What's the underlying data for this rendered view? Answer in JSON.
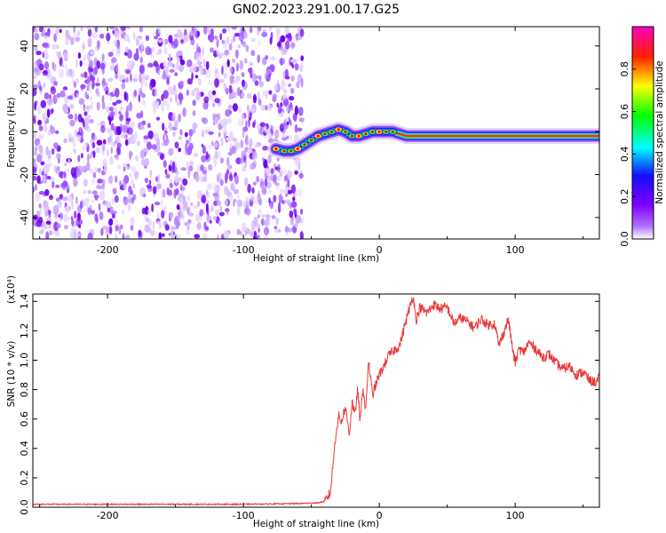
{
  "chart_data": [
    {
      "type": "heatmap",
      "title": "GN02.2023.291.00.17.G25",
      "xlabel": "Height of straight line (km)",
      "ylabel": "Frequency (Hz)",
      "xlim": [
        -255,
        162
      ],
      "ylim": [
        -50,
        49
      ],
      "xticks": [
        -200,
        -100,
        0,
        100
      ],
      "yticks": [
        -40,
        -20,
        0,
        20,
        40
      ],
      "colorbar": {
        "label": "Normalized spectral amplitude",
        "range": [
          0,
          1
        ],
        "ticks": [
          "0.0",
          "0.2",
          "0.4",
          "0.6",
          "0.8"
        ],
        "colormap": [
          "#ffffff",
          "#7f00ff",
          "#0000ff",
          "#00ffff",
          "#00ff00",
          "#ffff00",
          "#ff0000",
          "#ff00ff"
        ]
      },
      "noise_region_x": [
        -255,
        -62
      ],
      "ridge_frequency": {
        "x": [
          -76,
          -70,
          -65,
          -60,
          -55,
          -50,
          -45,
          -40,
          -35,
          -30,
          -25,
          -20,
          -15,
          -10,
          -5,
          0,
          5,
          10,
          20,
          40,
          60,
          80,
          100,
          120,
          140,
          162
        ],
        "y": [
          -8,
          -9,
          -9,
          -8,
          -6,
          -4,
          -2,
          -1,
          0,
          1,
          0,
          -2,
          -2,
          -1,
          0,
          0,
          0,
          0,
          -2,
          -2,
          -2,
          -2,
          -2,
          -2,
          -2,
          -2
        ]
      }
    },
    {
      "type": "line",
      "title": "",
      "xlabel": "Height of straight line (km)",
      "ylabel": "SNR (10 * v/v)",
      "multiplier": "(x10⁴)",
      "xlim": [
        -255,
        162
      ],
      "ylim": [
        0,
        1.45
      ],
      "xticks": [
        -200,
        -100,
        0,
        100
      ],
      "yticks": [
        "0.0",
        "0.2",
        "0.4",
        "0.6",
        "0.8",
        "1.0",
        "1.2",
        "1.4"
      ],
      "color": "#e8393a",
      "series": [
        {
          "x": [
            -255,
            -200,
            -150,
            -100,
            -60,
            -45,
            -40,
            -36,
            -34,
            -32,
            -30,
            -28,
            -25,
            -22,
            -20,
            -18,
            -16,
            -14,
            -12,
            -10,
            -8,
            -5,
            -2,
            0,
            3,
            6,
            10,
            15,
            20,
            25,
            27,
            30,
            35,
            40,
            45,
            50,
            55,
            60,
            65,
            70,
            75,
            80,
            85,
            88,
            92,
            95,
            98,
            100,
            103,
            106,
            110,
            115,
            120,
            125,
            130,
            135,
            140,
            145,
            150,
            155,
            160,
            162
          ],
          "y": [
            0.02,
            0.02,
            0.02,
            0.02,
            0.025,
            0.03,
            0.04,
            0.1,
            0.3,
            0.5,
            0.62,
            0.58,
            0.68,
            0.5,
            0.72,
            0.62,
            0.8,
            0.58,
            0.82,
            0.65,
            1.0,
            0.76,
            0.85,
            0.9,
            0.95,
            1.02,
            1.06,
            1.1,
            1.28,
            1.44,
            1.27,
            1.36,
            1.32,
            1.38,
            1.35,
            1.36,
            1.25,
            1.29,
            1.26,
            1.22,
            1.28,
            1.24,
            1.25,
            1.1,
            1.2,
            1.28,
            1.08,
            0.98,
            1.08,
            1.05,
            1.12,
            1.08,
            1.02,
            1.04,
            0.98,
            0.94,
            0.96,
            0.9,
            0.92,
            0.86,
            0.85,
            0.88
          ]
        }
      ]
    }
  ]
}
